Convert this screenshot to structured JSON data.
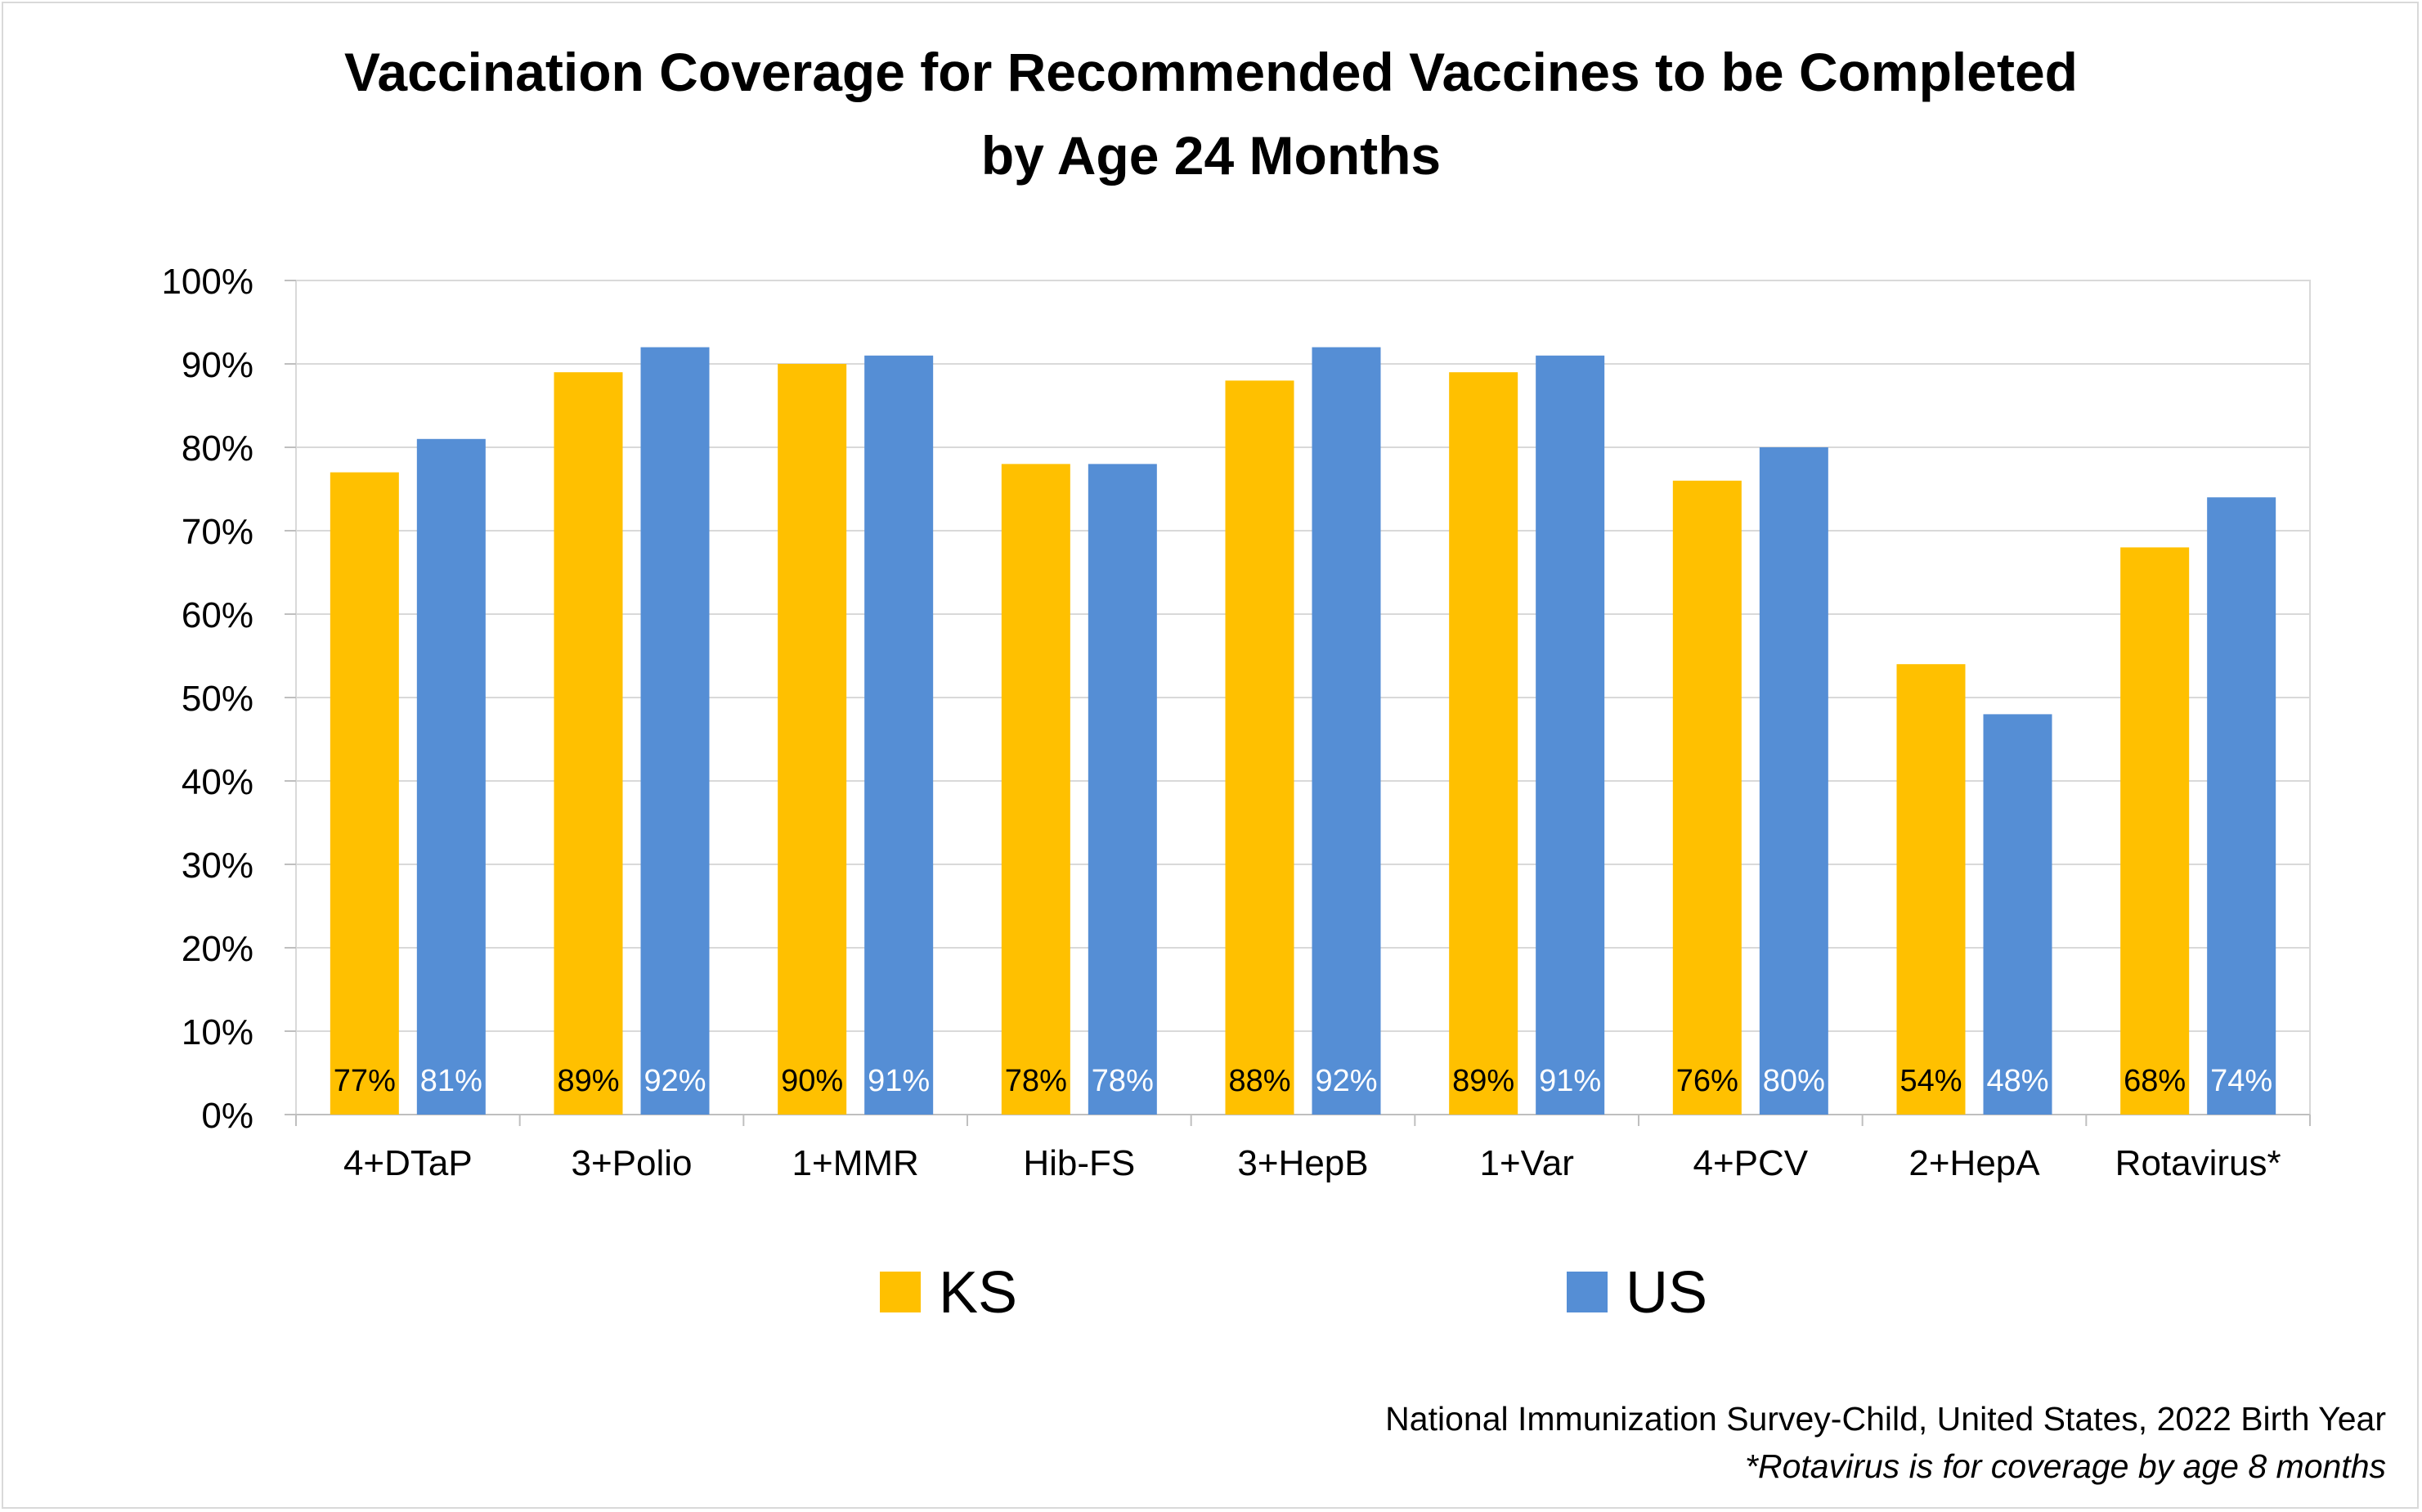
{
  "title_line1": "Vaccination Coverage for Recommended Vaccines to be Completed",
  "title_line2": "by Age 24 Months",
  "source_note": "National Immunization Survey-Child, United States, 2022 Birth Year",
  "footnote": "*Rotavirus is for coverage by age 8 months",
  "chart_data": {
    "type": "bar",
    "title": "Vaccination Coverage for Recommended Vaccines to be Completed by Age 24 Months",
    "categories": [
      "4+DTaP",
      "3+Polio",
      "1+MMR",
      "Hib-FS",
      "3+HepB",
      "1+Var",
      "4+PCV",
      "2+HepA",
      "Rotavirus*"
    ],
    "series": [
      {
        "name": "KS",
        "color": "#FFC000",
        "values": [
          77,
          89,
          90,
          78,
          88,
          89,
          76,
          54,
          68
        ],
        "labels": [
          "77%",
          "89%",
          "90%",
          "78%",
          "88%",
          "89%",
          "76%",
          "54%",
          "68%"
        ]
      },
      {
        "name": "US",
        "color": "#558ED5",
        "values": [
          81,
          92,
          91,
          78,
          92,
          91,
          80,
          48,
          74
        ],
        "labels": [
          "81%",
          "92%",
          "91%",
          "78%",
          "92%",
          "91%",
          "80%",
          "48%",
          "74%"
        ]
      }
    ],
    "ylim": [
      0,
      100
    ],
    "yticks": [
      "0%",
      "10%",
      "20%",
      "30%",
      "40%",
      "50%",
      "60%",
      "70%",
      "80%",
      "90%",
      "100%"
    ],
    "grid": true,
    "legend_position": "bottom"
  }
}
